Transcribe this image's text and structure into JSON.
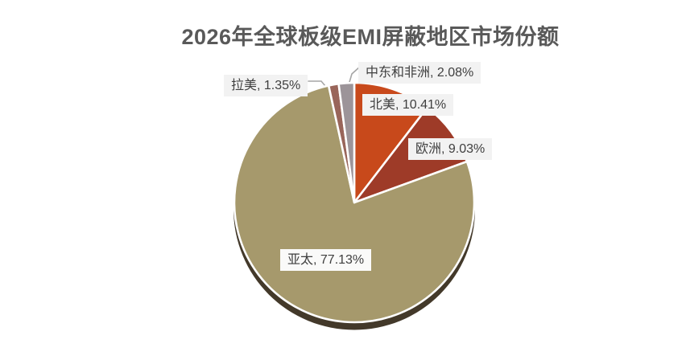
{
  "title": "2026年全球板级EMI屏蔽地区市场份额",
  "chart_data": {
    "type": "pie",
    "title": "2026年全球板级EMI屏蔽地区市场份额",
    "unit": "%",
    "start_angle_deg": 0,
    "direction": "clockwise",
    "legend": "none",
    "label_format": "{name}, {value}%",
    "series": [
      {
        "name": "北美",
        "value": 10.41,
        "color": "#C8491B"
      },
      {
        "name": "欧洲",
        "value": 9.03,
        "color": "#9E3B28"
      },
      {
        "name": "亚太",
        "value": 77.13,
        "color": "#A6996C"
      },
      {
        "name": "拉美",
        "value": 1.35,
        "color": "#99655A"
      },
      {
        "name": "中东和非洲",
        "value": 2.08,
        "color": "#9C9499"
      }
    ]
  },
  "labels": [
    {
      "region": "middle-east-africa",
      "text": "中东和非洲, 2.08%"
    },
    {
      "region": "north-america",
      "text": "北美, 10.41%"
    },
    {
      "region": "europe",
      "text": "欧洲, 9.03%"
    },
    {
      "region": "latin-america",
      "text": "拉美, 1.35%"
    },
    {
      "region": "asia-pacific",
      "text": "亚太, 77.13%"
    }
  ],
  "colors": {
    "title_text": "#595959",
    "label_text": "#3F3F3F",
    "label_bg": "#F2F2F2",
    "leader_line": "#A6A6A6",
    "slice_border": "#FFFFFF",
    "shadow": "#43392A",
    "background": "#FFFFFF"
  }
}
